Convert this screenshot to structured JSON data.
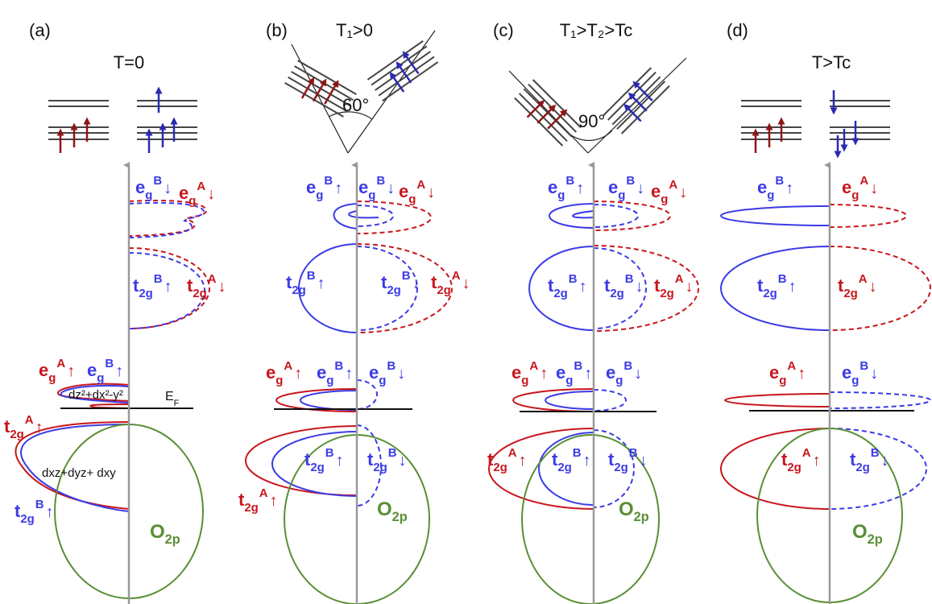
{
  "panels": [
    {
      "label": "(a)",
      "title": "T=0",
      "orbitals": [
        {
          "base": "e",
          "sub": "g",
          "sup": "B",
          "spin": "↓",
          "color": "#3b3be6"
        },
        {
          "base": "e",
          "sub": "g",
          "sup": "A",
          "spin": "↓",
          "color": "#c8161d"
        },
        {
          "base": "t",
          "sub": "2g",
          "sup": "B",
          "spin": "↑",
          "color": "#3b3be6"
        },
        {
          "base": "t",
          "sub": "2g",
          "sup": "A",
          "spin": "↓",
          "color": "#c8161d"
        },
        {
          "base": "e",
          "sub": "g",
          "sup": "A",
          "spin": "↑",
          "color": "#c8161d"
        },
        {
          "base": "e",
          "sub": "g",
          "sup": "B",
          "spin": "↑",
          "color": "#3b3be6"
        },
        {
          "base": "t",
          "sub": "2g",
          "sup": "A",
          "spin": "↑",
          "color": "#c8161d"
        },
        {
          "base": "t",
          "sub": "2g",
          "sup": "B",
          "spin": "↑",
          "color": "#3b3be6"
        }
      ],
      "notes": [
        "dz²+dx²-y²",
        "dxz+dyz+ dxy"
      ],
      "fermi": {
        "base": "E",
        "sub": "F"
      },
      "oxygen": {
        "base": "O",
        "sub": "2p"
      }
    },
    {
      "label": "(b)",
      "title": "T₁>0",
      "angle": "60°",
      "orbitals": [
        {
          "base": "e",
          "sub": "g",
          "sup": "B",
          "spin": "↑",
          "color": "#3b3be6"
        },
        {
          "base": "e",
          "sub": "g",
          "sup": "B",
          "spin": "↓",
          "color": "#3b3be6"
        },
        {
          "base": "e",
          "sub": "g",
          "sup": "A",
          "spin": "↓",
          "color": "#c8161d"
        },
        {
          "base": "t",
          "sub": "2g",
          "sup": "B",
          "spin": "↑",
          "color": "#3b3be6"
        },
        {
          "base": "t",
          "sub": "2g",
          "sup": "B",
          "spin": "↓",
          "color": "#3b3be6"
        },
        {
          "base": "t",
          "sub": "2g",
          "sup": "A",
          "spin": "↓",
          "color": "#c8161d"
        },
        {
          "base": "e",
          "sub": "g",
          "sup": "A",
          "spin": "↑",
          "color": "#c8161d"
        },
        {
          "base": "e",
          "sub": "g",
          "sup": "B",
          "spin": "↑",
          "color": "#3b3be6"
        },
        {
          "base": "e",
          "sub": "g",
          "sup": "B",
          "spin": "↓",
          "color": "#3b3be6"
        },
        {
          "base": "t",
          "sub": "2g",
          "sup": "B",
          "spin": "↑",
          "color": "#3b3be6"
        },
        {
          "base": "t",
          "sub": "2g",
          "sup": "B",
          "spin": "↓",
          "color": "#3b3be6"
        },
        {
          "base": "t",
          "sub": "2g",
          "sup": "A",
          "spin": "↑",
          "color": "#c8161d"
        }
      ],
      "oxygen": {
        "base": "O",
        "sub": "2p"
      }
    },
    {
      "label": "(c)",
      "title": "T₁>T₂>Tc",
      "angle": "90°",
      "orbitals": [
        {
          "base": "e",
          "sub": "g",
          "sup": "B",
          "spin": "↑",
          "color": "#3b3be6"
        },
        {
          "base": "e",
          "sub": "g",
          "sup": "B",
          "spin": "↓",
          "color": "#3b3be6"
        },
        {
          "base": "e",
          "sub": "g",
          "sup": "A",
          "spin": "↓",
          "color": "#c8161d"
        },
        {
          "base": "t",
          "sub": "2g",
          "sup": "B",
          "spin": "↑",
          "color": "#3b3be6"
        },
        {
          "base": "t",
          "sub": "2g",
          "sup": "B",
          "spin": "↓",
          "color": "#3b3be6"
        },
        {
          "base": "t",
          "sub": "2g",
          "sup": "A",
          "spin": "↓",
          "color": "#c8161d"
        },
        {
          "base": "e",
          "sub": "g",
          "sup": "A",
          "spin": "↑",
          "color": "#c8161d"
        },
        {
          "base": "e",
          "sub": "g",
          "sup": "B",
          "spin": "↑",
          "color": "#3b3be6"
        },
        {
          "base": "e",
          "sub": "g",
          "sup": "B",
          "spin": "↓",
          "color": "#3b3be6"
        },
        {
          "base": "t",
          "sub": "2g",
          "sup": "A",
          "spin": "↑",
          "color": "#c8161d"
        },
        {
          "base": "t",
          "sub": "2g",
          "sup": "B",
          "spin": "↑",
          "color": "#3b3be6"
        },
        {
          "base": "t",
          "sub": "2g",
          "sup": "B",
          "spin": "↓",
          "color": "#3b3be6"
        }
      ],
      "oxygen": {
        "base": "O",
        "sub": "2p"
      }
    },
    {
      "label": "(d)",
      "title": "T>Tc",
      "orbitals": [
        {
          "base": "e",
          "sub": "g",
          "sup": "B",
          "spin": "↑",
          "color": "#3b3be6"
        },
        {
          "base": "e",
          "sub": "g",
          "sup": "A",
          "spin": "↓",
          "color": "#c8161d"
        },
        {
          "base": "t",
          "sub": "2g",
          "sup": "B",
          "spin": "↑",
          "color": "#3b3be6"
        },
        {
          "base": "t",
          "sub": "2g",
          "sup": "A",
          "spin": "↓",
          "color": "#c8161d"
        },
        {
          "base": "e",
          "sub": "g",
          "sup": "A",
          "spin": "↑",
          "color": "#c8161d"
        },
        {
          "base": "e",
          "sub": "g",
          "sup": "B",
          "spin": "↓",
          "color": "#3b3be6"
        },
        {
          "base": "t",
          "sub": "2g",
          "sup": "A",
          "spin": "↑",
          "color": "#c8161d"
        },
        {
          "base": "t",
          "sub": "2g",
          "sup": "B",
          "spin": "↓",
          "color": "#3b3be6"
        }
      ],
      "oxygen": {
        "base": "O",
        "sub": "2p"
      }
    }
  ]
}
